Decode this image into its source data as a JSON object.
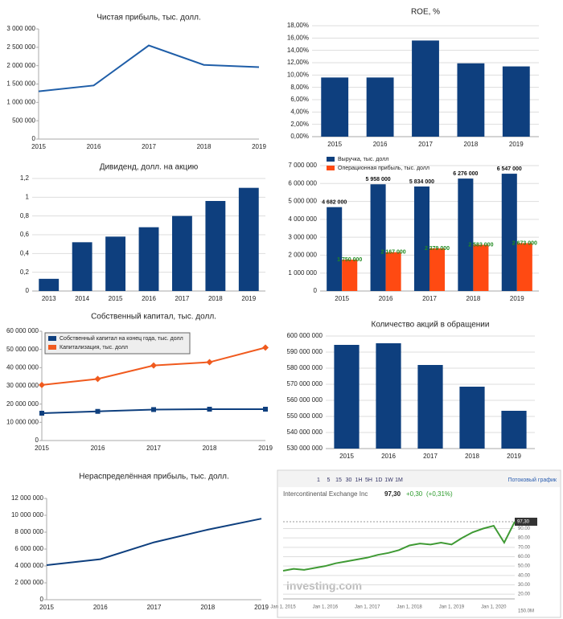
{
  "chart_data": [
    {
      "type": "line",
      "title": "Чистая прибыль, тыс. долл.",
      "categories": [
        "2015",
        "2016",
        "2017",
        "2018",
        "2019"
      ],
      "series": [
        {
          "name": null,
          "color": "#1f5ea8",
          "values": [
            1300000,
            1460000,
            2550000,
            2020000,
            1960000
          ]
        }
      ],
      "ylim": [
        0,
        3000000
      ],
      "yticks": [
        0,
        {
          "value": 500000,
          "label": "500 000"
        },
        {
          "value": 1000000,
          "label": "1 000 000"
        },
        {
          "value": 1500000,
          "label": "1 500 000"
        },
        {
          "value": 2000000,
          "label": "2 000 000"
        },
        {
          "value": 2500000,
          "label": "2 500 000"
        },
        {
          "value": 3000000,
          "label": "3 000 000"
        }
      ],
      "grid": false
    },
    {
      "type": "bar",
      "title": "ROE, %",
      "categories": [
        "2015",
        "2016",
        "2017",
        "2018",
        "2019"
      ],
      "values": [
        9.6,
        9.6,
        15.6,
        11.9,
        11.4
      ],
      "color": "#0e3f7e",
      "ylim": [
        0,
        18
      ],
      "yticks": [
        {
          "value": 0,
          "label": "0,00%"
        },
        {
          "value": 2,
          "label": "2,00%"
        },
        {
          "value": 4,
          "label": "4,00%"
        },
        {
          "value": 6,
          "label": "6,00%"
        },
        {
          "value": 8,
          "label": "8,00%"
        },
        {
          "value": 10,
          "label": "10,00%"
        },
        {
          "value": 12,
          "label": "12,00%"
        },
        {
          "value": 14,
          "label": "14,00%"
        },
        {
          "value": 16,
          "label": "16,00%"
        },
        {
          "value": 18,
          "label": "18,00%"
        }
      ],
      "grid": true
    },
    {
      "type": "bar",
      "title": "Дивиденд, долл. на акцию",
      "categories": [
        "2013",
        "2014",
        "2015",
        "2016",
        "2017",
        "2018",
        "2019"
      ],
      "values": [
        0.13,
        0.52,
        0.58,
        0.68,
        0.8,
        0.96,
        1.1
      ],
      "color": "#0e3f7e",
      "ylim": [
        0,
        1.2
      ],
      "yticks": [
        0,
        {
          "value": 0.2,
          "label": "0,2"
        },
        {
          "value": 0.4,
          "label": "0,4"
        },
        {
          "value": 0.6,
          "label": "0,6"
        },
        {
          "value": 0.8,
          "label": "0,8"
        },
        1,
        {
          "value": 1.2,
          "label": "1,2"
        }
      ],
      "grid": true
    },
    {
      "type": "bar",
      "categories": [
        "2015",
        "2016",
        "2017",
        "2018",
        "2019"
      ],
      "series": [
        {
          "name": "Выручка, тыс. долл",
          "color": "#0e3f7e",
          "values": [
            4682000,
            5958000,
            5834000,
            6276000,
            6547000
          ],
          "value_labels": [
            "4 682 000",
            "5 958 000",
            "5 834 000",
            "6 276 000",
            "6 547 000"
          ],
          "label_color": "#111111"
        },
        {
          "name": "Операционная прибыль, тыс. долл",
          "color": "#ff4a12",
          "values": [
            1750000,
            2167000,
            2379000,
            2583000,
            2673000
          ],
          "value_labels": [
            "1 750 000",
            "2 167 000",
            "2 379 000",
            "2 583 000",
            "2 673 000"
          ],
          "label_color": "#1f8a1f"
        }
      ],
      "ylim": [
        0,
        7000000
      ],
      "yticks": [
        0,
        {
          "value": 1000000,
          "label": "1 000 000"
        },
        {
          "value": 2000000,
          "label": "2 000 000"
        },
        {
          "value": 3000000,
          "label": "3 000 000"
        },
        {
          "value": 4000000,
          "label": "4 000 000"
        },
        {
          "value": 5000000,
          "label": "5 000 000"
        },
        {
          "value": 6000000,
          "label": "6 000 000"
        },
        {
          "value": 7000000,
          "label": "7 000 000"
        }
      ],
      "grid": true,
      "legend": "top-left"
    },
    {
      "type": "line",
      "title": "Собственный капитал, тыс. долл.",
      "categories": [
        "2015",
        "2016",
        "2017",
        "2018",
        "2019"
      ],
      "series": [
        {
          "name": "Собственный капитал на конец года, тыс. долл",
          "color": "#0e3f7e",
          "marker": "square",
          "values": [
            15000000,
            16000000,
            17000000,
            17200000,
            17200000
          ]
        },
        {
          "name": "Капитализация, тыс. долл",
          "color": "#f05a1e",
          "marker": "diamond",
          "values": [
            30500000,
            33800000,
            41200000,
            43000000,
            51000000
          ]
        }
      ],
      "ylim": [
        0,
        60000000
      ],
      "yticks": [
        0,
        {
          "value": 10000000,
          "label": "10 000 000"
        },
        {
          "value": 20000000,
          "label": "20 000 000"
        },
        {
          "value": 30000000,
          "label": "30 000 000"
        },
        {
          "value": 40000000,
          "label": "40 000 000"
        },
        {
          "value": 50000000,
          "label": "50 000 000"
        },
        {
          "value": 60000000,
          "label": "60 000 000"
        }
      ],
      "grid": false,
      "legend": "top-left"
    },
    {
      "type": "bar",
      "title": "Количество акций в обращении",
      "categories": [
        "2015",
        "2016",
        "2017",
        "2018",
        "2019"
      ],
      "values": [
        594500000,
        595500000,
        582000000,
        568500000,
        553500000
      ],
      "color": "#0e3f7e",
      "ylim": [
        530000000,
        600000000
      ],
      "yticks": [
        {
          "value": 530000000,
          "label": "530 000 000"
        },
        {
          "value": 540000000,
          "label": "540 000 000"
        },
        {
          "value": 550000000,
          "label": "550 000 000"
        },
        {
          "value": 560000000,
          "label": "560 000 000"
        },
        {
          "value": 570000000,
          "label": "570 000 000"
        },
        {
          "value": 580000000,
          "label": "580 000 000"
        },
        {
          "value": 590000000,
          "label": "590 000 000"
        },
        {
          "value": 600000000,
          "label": "600 000 000"
        }
      ],
      "grid": true
    },
    {
      "type": "line",
      "title": "Нераспределённая прибыль, тыс. долл.",
      "categories": [
        "2015",
        "2016",
        "2017",
        "2018",
        "2019"
      ],
      "series": [
        {
          "name": null,
          "color": "#0e3f7e",
          "values": [
            4100000,
            4800000,
            6800000,
            8300000,
            9600000
          ]
        }
      ],
      "ylim": [
        0,
        12000000
      ],
      "yticks": [
        0,
        {
          "value": 2000000,
          "label": "2 000 000"
        },
        {
          "value": 4000000,
          "label": "4 000 000"
        },
        {
          "value": 6000000,
          "label": "6 000 000"
        },
        {
          "value": 8000000,
          "label": "8 000 000"
        },
        {
          "value": 10000000,
          "label": "10 000 000"
        },
        {
          "value": 12000000,
          "label": "12 000 000"
        }
      ],
      "grid": false
    },
    {
      "type": "line",
      "header": {
        "symbol": "Intercontinental Exchange Inc",
        "price": "97,30",
        "change": "+0,30",
        "change_pct": "(+0,31%)"
      },
      "buttons": [
        "1",
        "5",
        "15",
        "30",
        "1H",
        "5H",
        "1D",
        "1W",
        "1M"
      ],
      "link": "Потоковый график",
      "brand": "investing.com",
      "volume_label": "150.0M",
      "categories": [
        "Jan 1, 2015",
        null,
        null,
        null,
        "Jan 1, 2016",
        null,
        null,
        null,
        "Jan 1, 2017",
        null,
        null,
        null,
        "Jan 1, 2018",
        null,
        null,
        null,
        "Jan 1, 2019",
        null,
        null,
        null,
        "Jan 1, 2020",
        null,
        null
      ],
      "series": [
        {
          "name": null,
          "color": "#3f9a34",
          "values": [
            45,
            47,
            46,
            48,
            50,
            53,
            55,
            57,
            59,
            62,
            64,
            67,
            72,
            74,
            73,
            75,
            73,
            80,
            86,
            90,
            93,
            75,
            97.3
          ]
        }
      ],
      "ylim": [
        15,
        105
      ],
      "yticks": [
        {
          "value": 20,
          "label": "20.00"
        },
        {
          "value": 30,
          "label": "30.00"
        },
        {
          "value": 40,
          "label": "40.00"
        },
        {
          "value": 50,
          "label": "50.00"
        },
        {
          "value": 60,
          "label": "60.00"
        },
        {
          "value": 70,
          "label": "70.00"
        },
        {
          "value": 80,
          "label": "80.00"
        },
        {
          "value": 90,
          "label": "90.00"
        }
      ],
      "grid": true,
      "y_axis_side": "right"
    }
  ]
}
